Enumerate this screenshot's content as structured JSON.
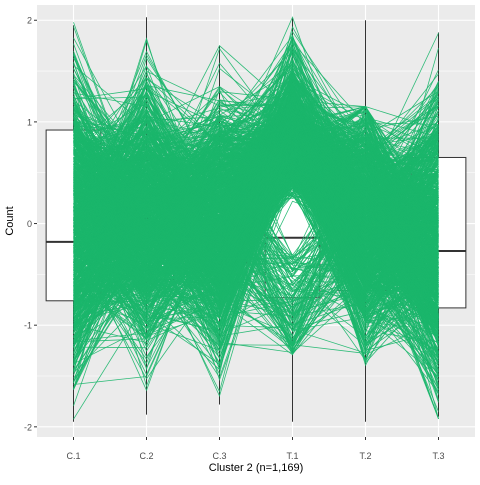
{
  "chart_data": {
    "type": "line",
    "subtype": "parallel-coordinates-with-boxplots",
    "xlabel": "Cluster 2 (n=1,169)",
    "ylabel": "Count",
    "categories": [
      "C.1",
      "C.2",
      "C.3",
      "T.1",
      "T.2",
      "T.3"
    ],
    "ylim": [
      -2.1,
      2.15
    ],
    "yticks": [
      -2,
      -1,
      0,
      1,
      2
    ],
    "ytick_labels": [
      "-2",
      "-1",
      "0",
      "1",
      "2"
    ],
    "line_count": 1169,
    "line_color": "#1bb66b",
    "panel_background": "#ebebeb",
    "grid": true,
    "boxplots": [
      {
        "category": "C.1",
        "whisker_low": -1.95,
        "q1": -0.76,
        "median": -0.18,
        "q3": 0.92,
        "whisker_high": 1.95
      },
      {
        "category": "C.2",
        "whisker_low": -1.88,
        "q1": -0.55,
        "median": 0.05,
        "q3": 0.62,
        "whisker_high": 2.03
      },
      {
        "category": "C.3",
        "whisker_low": -1.78,
        "q1": -0.58,
        "median": -0.02,
        "q3": 0.52,
        "whisker_high": 1.75
      },
      {
        "category": "T.1",
        "whisker_low": -1.95,
        "q1": -0.73,
        "median": -0.14,
        "q3": 0.95,
        "whisker_high": 2.02
      },
      {
        "category": "T.2",
        "whisker_low": -1.95,
        "q1": -0.66,
        "median": -0.05,
        "q3": 0.6,
        "whisker_high": 2.0
      },
      {
        "category": "T.3",
        "whisker_low": -1.9,
        "q1": -0.83,
        "median": -0.27,
        "q3": 0.65,
        "whisker_high": 1.88
      }
    ]
  }
}
